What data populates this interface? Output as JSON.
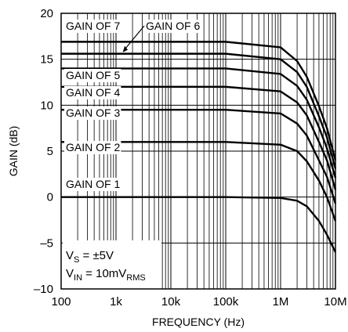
{
  "chart_data": {
    "type": "line",
    "xlabel": "FREQUENCY (Hz)",
    "ylabel": "GAIN (dB)",
    "x_scale": "log",
    "xlim": [
      100,
      10000000
    ],
    "ylim": [
      -10,
      20
    ],
    "x_ticks": [
      {
        "value": 100,
        "label": "100"
      },
      {
        "value": 1000,
        "label": "1k"
      },
      {
        "value": 10000,
        "label": "10k"
      },
      {
        "value": 100000,
        "label": "100k"
      },
      {
        "value": 1000000,
        "label": "1M"
      },
      {
        "value": 10000000,
        "label": "10M"
      }
    ],
    "y_ticks": [
      {
        "value": 20,
        "label": "20"
      },
      {
        "value": 15,
        "label": "15"
      },
      {
        "value": 10,
        "label": "10"
      },
      {
        "value": 5,
        "label": "5"
      },
      {
        "value": 0,
        "label": "0"
      },
      {
        "value": -5,
        "label": "–5"
      },
      {
        "value": -10,
        "label": "–10"
      }
    ],
    "grid": true,
    "conditions": {
      "vs_prefix": "V",
      "vs_sub": "S",
      "vs_value": " = ±5V",
      "vin_prefix": "V",
      "vin_sub": "IN",
      "vin_value": " = 10mV",
      "vin_unit_sub": "RMS"
    },
    "series": [
      {
        "name": "GAIN OF 1",
        "gain_db": 0.0,
        "points": [
          [
            100,
            0
          ],
          [
            100000,
            0
          ],
          [
            1000000,
            -0.1
          ],
          [
            2000000,
            -0.4
          ],
          [
            3000000,
            -1.0
          ],
          [
            5000000,
            -2.6
          ],
          [
            7000000,
            -4.1
          ],
          [
            10000000,
            -6.0
          ]
        ]
      },
      {
        "name": "GAIN OF 2",
        "gain_db": 6.0,
        "points": [
          [
            100,
            6
          ],
          [
            100000,
            6
          ],
          [
            1000000,
            5.7
          ],
          [
            2000000,
            5.0
          ],
          [
            3000000,
            3.9
          ],
          [
            5000000,
            1.8
          ],
          [
            7000000,
            0.0
          ],
          [
            10000000,
            -2.6
          ]
        ]
      },
      {
        "name": "GAIN OF 3",
        "gain_db": 9.5,
        "points": [
          [
            100,
            9.5
          ],
          [
            100000,
            9.5
          ],
          [
            1000000,
            9.1
          ],
          [
            2000000,
            8.0
          ],
          [
            3000000,
            6.7
          ],
          [
            5000000,
            4.0
          ],
          [
            7000000,
            2.2
          ],
          [
            10000000,
            -0.7
          ]
        ]
      },
      {
        "name": "GAIN OF 4",
        "gain_db": 12.0,
        "points": [
          [
            100,
            12
          ],
          [
            100000,
            12
          ],
          [
            1000000,
            11.5
          ],
          [
            2000000,
            10.3
          ],
          [
            3000000,
            8.9
          ],
          [
            5000000,
            6.0
          ],
          [
            7000000,
            4.0
          ],
          [
            10000000,
            0.8
          ]
        ]
      },
      {
        "name": "GAIN OF 5",
        "gain_db": 14.0,
        "points": [
          [
            100,
            14
          ],
          [
            100000,
            14
          ],
          [
            1000000,
            13.4
          ],
          [
            2000000,
            12.1
          ],
          [
            3000000,
            10.6
          ],
          [
            5000000,
            7.6
          ],
          [
            7000000,
            5.3
          ],
          [
            10000000,
            2.1
          ]
        ]
      },
      {
        "name": "GAIN OF 6",
        "gain_db": 15.6,
        "points": [
          [
            100,
            15.6
          ],
          [
            100000,
            15.6
          ],
          [
            1000000,
            15.0
          ],
          [
            2000000,
            13.6
          ],
          [
            3000000,
            12.0
          ],
          [
            5000000,
            8.8
          ],
          [
            7000000,
            6.5
          ],
          [
            10000000,
            3.1
          ]
        ]
      },
      {
        "name": "GAIN OF 7",
        "gain_db": 16.9,
        "points": [
          [
            100,
            16.9
          ],
          [
            100000,
            16.9
          ],
          [
            1000000,
            16.3
          ],
          [
            2000000,
            14.8
          ],
          [
            3000000,
            13.1
          ],
          [
            5000000,
            9.9
          ],
          [
            7000000,
            7.5
          ],
          [
            10000000,
            4.0
          ]
        ]
      }
    ]
  }
}
